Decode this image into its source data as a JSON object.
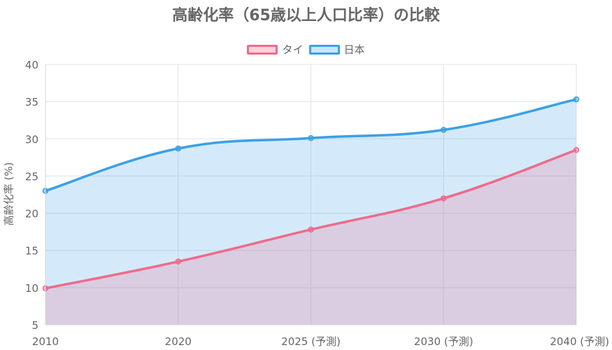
{
  "chart_data": {
    "type": "area",
    "title": "高齢化率（65歳以上人口比率）の比較",
    "xlabel": "",
    "ylabel": "高齢化率 (%)",
    "categories": [
      "2010",
      "2020",
      "2025 (予測)",
      "2030 (予測)",
      "2040 (予測)"
    ],
    "ylim": [
      5,
      40
    ],
    "yticks": [
      5,
      10,
      15,
      20,
      25,
      30,
      35,
      40
    ],
    "grid": true,
    "legend_position": "top",
    "series": [
      {
        "name": "タイ",
        "values": [
          9.9,
          13.5,
          17.8,
          22.0,
          28.5
        ],
        "line_color": "#f06a8a",
        "fill_color": "#ffd2dc"
      },
      {
        "name": "日本",
        "values": [
          23.0,
          28.7,
          30.1,
          31.2,
          35.3
        ],
        "line_color": "#3ba0e6",
        "fill_color": "#cce6f8"
      }
    ]
  }
}
